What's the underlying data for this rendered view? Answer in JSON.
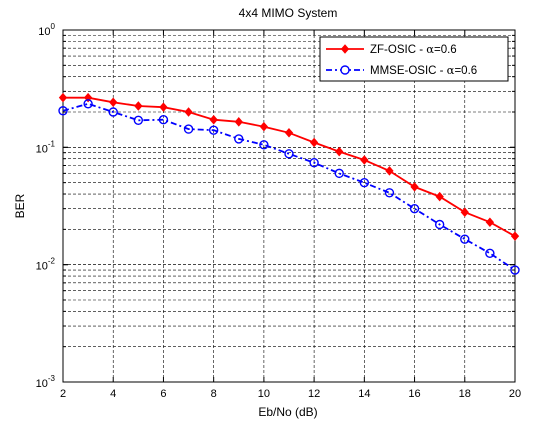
{
  "chart_data": {
    "type": "line",
    "title": "4x4 MIMO System",
    "xlabel": "Eb/No (dB)",
    "ylabel": "BER",
    "y_scale": "log",
    "xlim": [
      2,
      20
    ],
    "ylim": [
      0.001,
      1
    ],
    "x_ticks": [
      2,
      4,
      6,
      8,
      10,
      12,
      14,
      16,
      18,
      20
    ],
    "y_ticks": [
      {
        "value": 0.001,
        "base": "10",
        "exp": "-3"
      },
      {
        "value": 0.01,
        "base": "10",
        "exp": "-2"
      },
      {
        "value": 0.1,
        "base": "10",
        "exp": "-1"
      },
      {
        "value": 1,
        "base": "10",
        "exp": "0"
      }
    ],
    "grid": true,
    "legend_position": "top-right",
    "x": [
      2,
      3,
      4,
      5,
      6,
      7,
      8,
      9,
      10,
      11,
      12,
      13,
      14,
      15,
      16,
      17,
      18,
      19,
      20
    ],
    "series": [
      {
        "name_prefix": "ZF-OSIC - ",
        "name_symbol": "α",
        "name_suffix": "=0.6",
        "color": "#ff0000",
        "line_style": "solid",
        "marker": "filled-diamond",
        "values": [
          0.265,
          0.265,
          0.242,
          0.225,
          0.22,
          0.2,
          0.172,
          0.165,
          0.15,
          0.133,
          0.11,
          0.092,
          0.078,
          0.063,
          0.046,
          0.038,
          0.028,
          0.023,
          0.0175
        ]
      },
      {
        "name_prefix": "MMSE-OSIC - ",
        "name_symbol": "α",
        "name_suffix": "=0.6",
        "color": "#0000ff",
        "line_style": "dash-dot",
        "marker": "open-circle",
        "values": [
          0.205,
          0.235,
          0.2,
          0.17,
          0.172,
          0.143,
          0.14,
          0.118,
          0.105,
          0.088,
          0.074,
          0.06,
          0.05,
          0.041,
          0.03,
          0.022,
          0.0165,
          0.0125,
          0.009
        ]
      }
    ]
  }
}
